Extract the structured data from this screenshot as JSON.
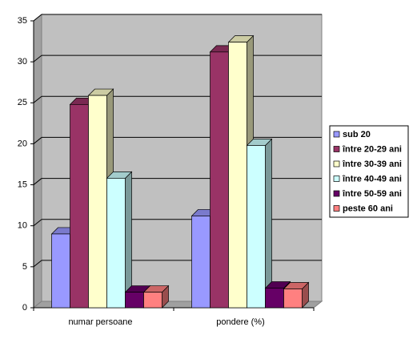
{
  "chart_data": {
    "type": "bar3d",
    "categories": [
      "numar persoane",
      "pondere  (%)"
    ],
    "series": [
      {
        "name": "sub 20",
        "color": "#9999ff",
        "values": [
          9,
          11.2
        ]
      },
      {
        "name": "între 20-29 ani",
        "color": "#993366",
        "values": [
          24.8,
          31.2
        ]
      },
      {
        "name": "între 30-39 ani",
        "color": "#ffffcc",
        "values": [
          25.9,
          32.4
        ]
      },
      {
        "name": "între 40-49 ani",
        "color": "#ccffff",
        "values": [
          15.8,
          19.8
        ]
      },
      {
        "name": "între 50-59 ani",
        "color": "#660066",
        "values": [
          1.9,
          2.4
        ]
      },
      {
        "name": "peste 60 ani",
        "color": "#ff8080",
        "values": [
          1.9,
          2.3
        ]
      }
    ],
    "ylim": [
      0,
      35
    ],
    "yticks": [
      0,
      5,
      10,
      15,
      20,
      25,
      30,
      35
    ],
    "grid": true,
    "legend": "right"
  }
}
